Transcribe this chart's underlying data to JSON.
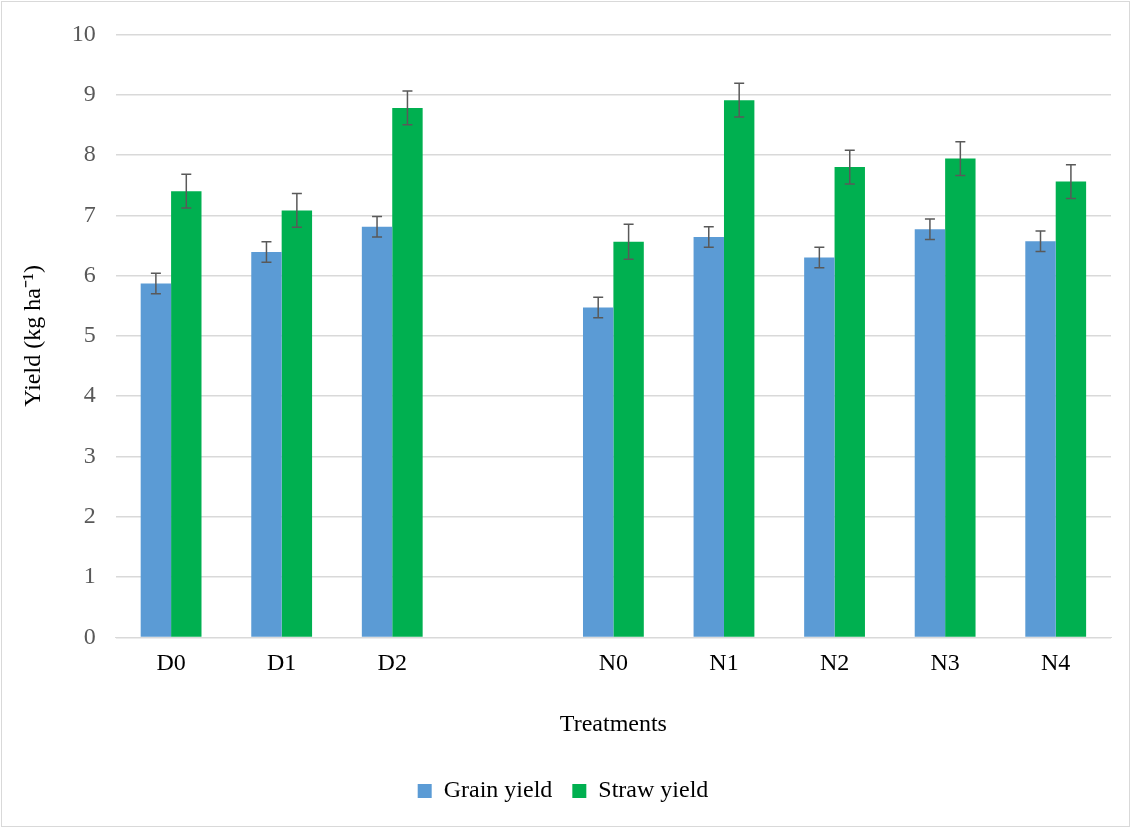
{
  "chart_data": {
    "type": "bar",
    "xlabel": "Treatments",
    "ylabel": "Yield (kg ha⁻¹)",
    "categories": [
      "D0",
      "D1",
      "D2",
      null,
      "N0",
      "N1",
      "N2",
      "N3",
      "N4"
    ],
    "series": [
      {
        "name": "Grain yield",
        "color": "#5b9bd5",
        "values": [
          5.87,
          6.39,
          6.81,
          null,
          5.47,
          6.64,
          6.3,
          6.77,
          6.57
        ],
        "errors": [
          0.17,
          0.17,
          0.17,
          null,
          0.17,
          0.17,
          0.17,
          0.17,
          0.17
        ]
      },
      {
        "name": "Straw yield",
        "color": "#00b050",
        "values": [
          7.4,
          7.08,
          8.78,
          null,
          6.56,
          8.91,
          7.8,
          7.94,
          7.56
        ],
        "errors": [
          0.28,
          0.28,
          0.28,
          null,
          0.29,
          0.28,
          0.28,
          0.28,
          0.28
        ]
      }
    ],
    "ylim": [
      0,
      10
    ],
    "yticks": [
      0,
      1,
      2,
      3,
      4,
      5,
      6,
      7,
      8,
      9,
      10
    ],
    "grid": "y",
    "legend": "bottom"
  }
}
